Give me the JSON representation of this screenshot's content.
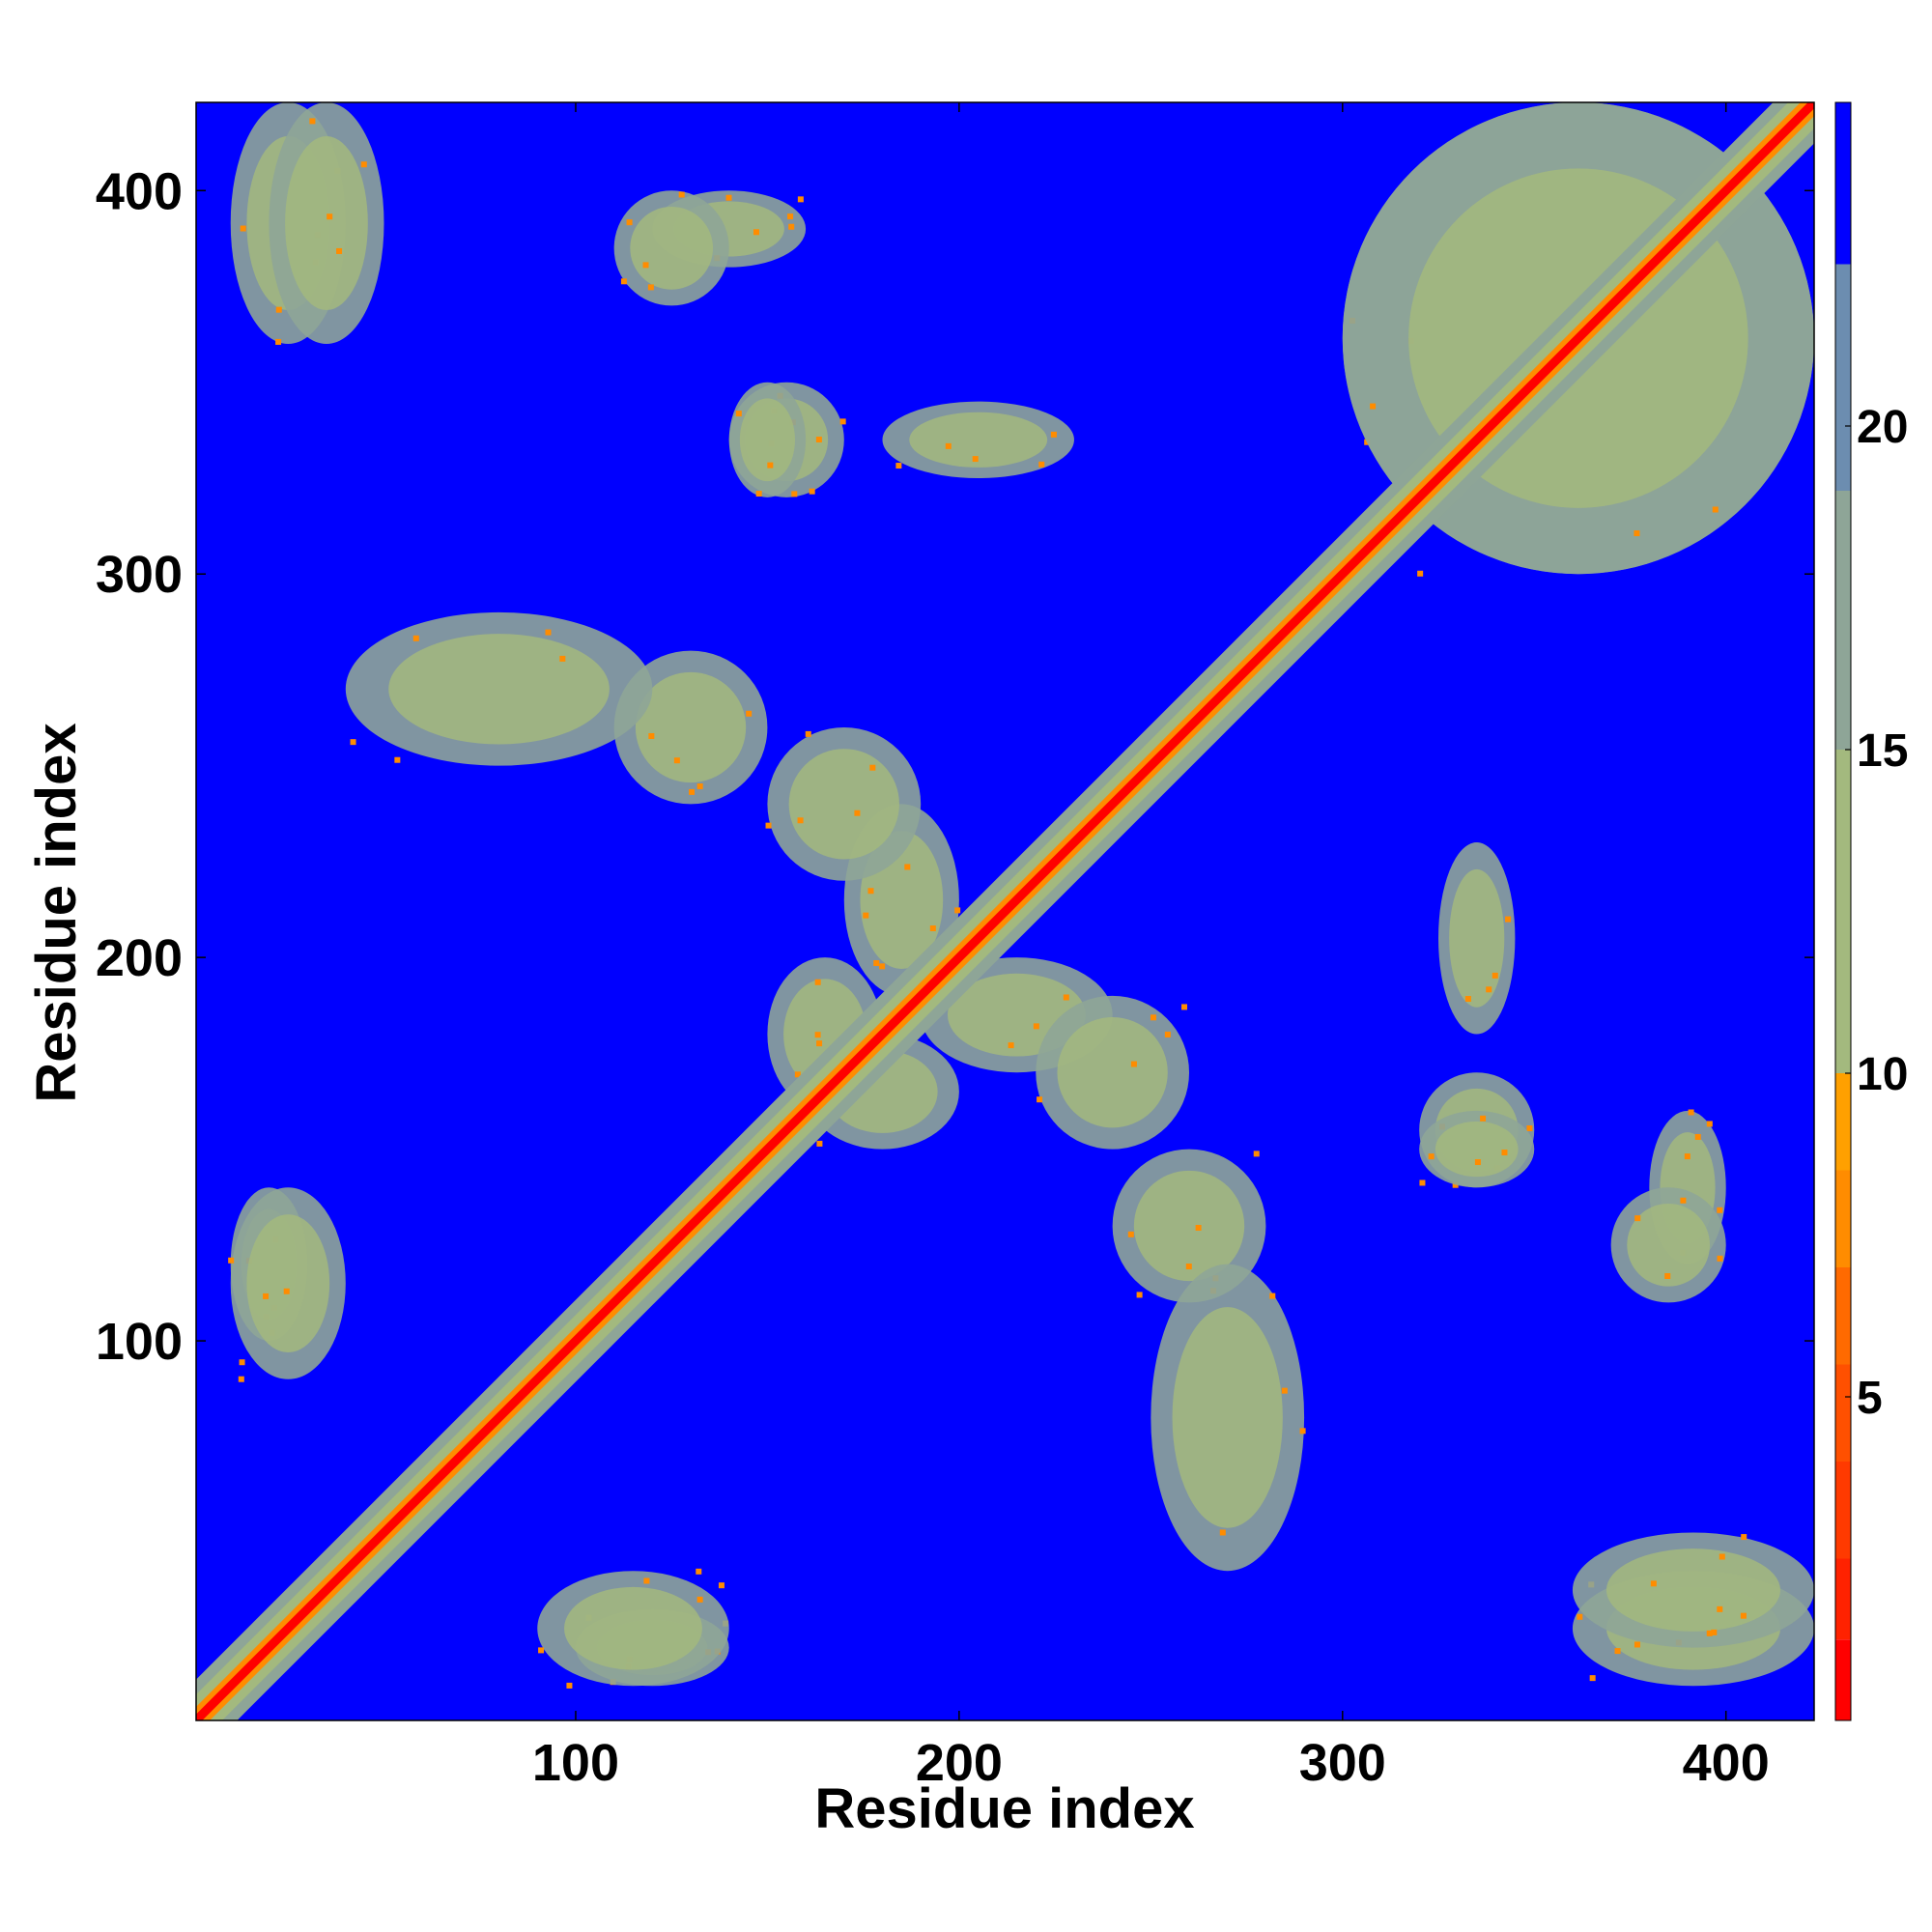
{
  "chart_data": {
    "type": "heatmap",
    "title": "",
    "xlabel": "Residue index",
    "ylabel": "Residue index",
    "xlim": [
      1,
      423
    ],
    "ylim": [
      1,
      423
    ],
    "x_ticks": [
      100,
      200,
      300,
      400
    ],
    "y_ticks": [
      100,
      200,
      300,
      400
    ],
    "x_tick_labels": [
      "100",
      "200",
      "300",
      "400"
    ],
    "y_tick_labels": [
      "100",
      "200",
      "300",
      "400"
    ],
    "colorbar": {
      "range": [
        0,
        25
      ],
      "ticks": [
        5,
        10,
        15,
        20
      ],
      "tick_labels": [
        "5",
        "10",
        "15",
        "20"
      ],
      "bands": [
        {
          "from": 0,
          "to": 1.25,
          "color": "#ff0000"
        },
        {
          "from": 1.25,
          "to": 2.5,
          "color": "#ff2200"
        },
        {
          "from": 2.5,
          "to": 4.0,
          "color": "#ff3a00"
        },
        {
          "from": 4.0,
          "to": 5.5,
          "color": "#ff5000"
        },
        {
          "from": 5.5,
          "to": 7.0,
          "color": "#ff6a00"
        },
        {
          "from": 7.0,
          "to": 8.5,
          "color": "#ff8c00"
        },
        {
          "from": 8.5,
          "to": 10.0,
          "color": "#ffa000"
        },
        {
          "from": 10.0,
          "to": 15.0,
          "color": "#a3b97e"
        },
        {
          "from": 15.0,
          "to": 19.0,
          "color": "#8ea597"
        },
        {
          "from": 19.0,
          "to": 22.5,
          "color": "#6c8db0"
        },
        {
          "from": 22.5,
          "to": 25.0,
          "color": "#0000ff"
        }
      ]
    },
    "background_color": "#0000ff",
    "contact_regions": [
      {
        "x1": 110,
        "x2": 150,
        "y1": 240,
        "y2": 280
      },
      {
        "x1": 170,
        "x2": 200,
        "y1": 190,
        "y2": 240
      },
      {
        "x1": 160,
        "x2": 200,
        "y1": 150,
        "y2": 180
      },
      {
        "x1": 220,
        "x2": 260,
        "y1": 150,
        "y2": 190
      },
      {
        "x1": 250,
        "x2": 290,
        "y1": 40,
        "y2": 120
      },
      {
        "x1": 300,
        "x2": 423,
        "y1": 300,
        "y2": 423
      },
      {
        "x1": 10,
        "x2": 40,
        "y1": 360,
        "y2": 423
      },
      {
        "x1": 120,
        "x2": 160,
        "y1": 380,
        "y2": 400
      },
      {
        "x1": 140,
        "x2": 170,
        "y1": 320,
        "y2": 350
      },
      {
        "x1": 325,
        "x2": 345,
        "y1": 180,
        "y2": 230
      },
      {
        "x1": 320,
        "x2": 350,
        "y1": 140,
        "y2": 160
      },
      {
        "x1": 370,
        "x2": 400,
        "y1": 110,
        "y2": 140
      },
      {
        "x1": 360,
        "x2": 423,
        "y1": 20,
        "y2": 50
      },
      {
        "x1": 100,
        "x2": 140,
        "y1": 10,
        "y2": 30
      },
      {
        "x1": 10,
        "x2": 40,
        "y1": 90,
        "y2": 140
      }
    ]
  }
}
